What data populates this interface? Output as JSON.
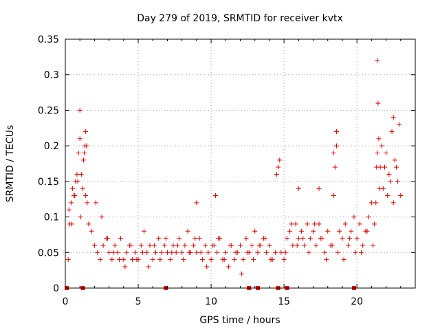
{
  "chart_data": {
    "type": "scatter",
    "title": "Day 279 of 2019, SRMTID for receiver kvtx",
    "xlabel": "GPS time / hours",
    "ylabel": "SRMTID / TECUs",
    "xlim": [
      0,
      24
    ],
    "ylim": [
      0,
      0.35
    ],
    "xticks": [
      0,
      5,
      10,
      15,
      20
    ],
    "xtick_labels": [
      "0",
      "5",
      "10",
      "15",
      "20"
    ],
    "yticks": [
      0,
      0.05,
      0.1,
      0.15,
      0.2,
      0.25,
      0.3,
      0.35
    ],
    "ytick_labels": [
      "0",
      "0.05",
      "0.1",
      "0.15",
      "0.2",
      "0.25",
      "0.3",
      "0.35"
    ],
    "grid": true,
    "marker": "+",
    "color": "#e00000",
    "zero_markers_x": [
      0.1,
      1.2,
      6.9,
      12.6,
      13.2,
      14.6,
      15.2,
      19.8
    ],
    "series": [
      {
        "name": "SRMTID",
        "x": [
          0.2,
          0.3,
          0.4,
          0.5,
          0.6,
          0.7,
          0.8,
          0.9,
          1.0,
          1.1,
          1.2,
          1.3,
          1.4,
          1.5,
          1.6,
          1.8,
          2.0,
          2.2,
          2.4,
          2.6,
          2.8,
          3.0,
          3.2,
          3.4,
          3.6,
          3.8,
          4.0,
          4.2,
          4.4,
          4.6,
          4.8,
          5.0,
          5.2,
          5.4,
          5.6,
          5.8,
          6.0,
          6.2,
          6.4,
          6.6,
          6.8,
          7.0,
          7.2,
          7.4,
          7.6,
          7.8,
          8.0,
          8.2,
          8.4,
          8.6,
          8.8,
          9.0,
          9.2,
          9.4,
          9.6,
          9.8,
          10.0,
          10.2,
          10.4,
          10.6,
          10.8,
          11.0,
          11.2,
          11.4,
          11.6,
          11.8,
          12.0,
          12.2,
          12.4,
          12.6,
          12.8,
          13.0,
          13.2,
          13.4,
          13.6,
          13.8,
          14.0,
          14.2,
          14.4,
          14.5,
          14.6,
          14.7,
          14.8,
          15.0,
          15.2,
          15.4,
          15.6,
          15.8,
          16.0,
          16.2,
          16.4,
          16.6,
          16.8,
          17.0,
          17.2,
          17.4,
          17.6,
          17.8,
          18.0,
          18.2,
          18.4,
          18.5,
          18.6,
          18.8,
          19.0,
          19.2,
          19.4,
          19.6,
          19.8,
          20.0,
          20.2,
          20.4,
          20.6,
          20.8,
          21.0,
          21.2,
          21.3,
          21.4,
          21.5,
          21.6,
          21.8,
          22.0,
          22.2,
          22.4,
          22.6,
          22.8,
          23.0,
          0.25,
          0.45,
          0.65,
          0.85,
          1.05,
          1.25,
          1.45,
          2.1,
          2.5,
          2.9,
          3.3,
          3.7,
          4.1,
          4.5,
          4.9,
          5.3,
          5.7,
          6.1,
          6.5,
          6.9,
          7.3,
          7.7,
          8.1,
          8.5,
          8.9,
          9.3,
          9.7,
          10.1,
          10.5,
          10.9,
          11.3,
          11.7,
          12.1,
          12.5,
          12.9,
          13.3,
          13.7,
          14.1,
          15.1,
          15.5,
          15.9,
          16.3,
          16.7,
          17.1,
          17.5,
          17.9,
          18.3,
          18.7,
          19.1,
          19.5,
          19.9,
          20.3,
          20.7,
          21.1,
          21.35,
          21.55,
          21.7,
          21.9,
          22.1,
          22.3,
          22.5,
          22.7,
          22.9,
          1.0,
          1.35,
          1.4,
          9.0,
          10.3,
          16.0,
          17.4,
          18.4,
          18.6,
          21.4,
          21.45,
          22.5
        ],
        "y": [
          0.04,
          0.09,
          0.12,
          0.14,
          0.13,
          0.15,
          0.16,
          0.19,
          0.21,
          0.16,
          0.14,
          0.19,
          0.22,
          0.12,
          0.09,
          0.08,
          0.06,
          0.05,
          0.04,
          0.06,
          0.07,
          0.05,
          0.04,
          0.06,
          0.05,
          0.07,
          0.04,
          0.05,
          0.06,
          0.04,
          0.05,
          0.04,
          0.06,
          0.08,
          0.05,
          0.06,
          0.04,
          0.05,
          0.07,
          0.05,
          0.06,
          0.05,
          0.04,
          0.06,
          0.05,
          0.07,
          0.05,
          0.06,
          0.08,
          0.05,
          0.06,
          0.05,
          0.07,
          0.04,
          0.06,
          0.05,
          0.04,
          0.06,
          0.05,
          0.07,
          0.04,
          0.05,
          0.03,
          0.06,
          0.04,
          0.05,
          0.06,
          0.04,
          0.07,
          0.05,
          0.06,
          0.08,
          0.05,
          0.06,
          0.07,
          0.05,
          0.06,
          0.04,
          0.05,
          0.16,
          0.17,
          0.18,
          0.05,
          0.04,
          0.07,
          0.08,
          0.06,
          0.09,
          0.07,
          0.08,
          0.06,
          0.09,
          0.07,
          0.08,
          0.06,
          0.09,
          0.07,
          0.05,
          0.08,
          0.06,
          0.13,
          0.17,
          0.2,
          0.08,
          0.07,
          0.09,
          0.06,
          0.08,
          0.1,
          0.07,
          0.09,
          0.06,
          0.08,
          0.1,
          0.12,
          0.09,
          0.12,
          0.19,
          0.21,
          0.17,
          0.14,
          0.19,
          0.16,
          0.22,
          0.18,
          0.15,
          0.13,
          0.11,
          0.09,
          0.13,
          0.15,
          0.1,
          0.18,
          0.2,
          0.12,
          0.1,
          0.07,
          0.05,
          0.04,
          0.03,
          0.06,
          0.04,
          0.05,
          0.03,
          0.06,
          0.04,
          0.07,
          0.05,
          0.06,
          0.04,
          0.05,
          0.07,
          0.05,
          0.03,
          0.06,
          0.07,
          0.04,
          0.06,
          0.05,
          0.02,
          0.05,
          0.04,
          0.06,
          0.07,
          0.04,
          0.05,
          0.09,
          0.06,
          0.07,
          0.05,
          0.09,
          0.07,
          0.04,
          0.06,
          0.05,
          0.04,
          0.07,
          0.05,
          0.05,
          0.08,
          0.06,
          0.17,
          0.14,
          0.2,
          0.17,
          0.13,
          0.15,
          0.12,
          0.17,
          0.23,
          0.25,
          0.2,
          0.13,
          0.12,
          0.13,
          0.14,
          0.14,
          0.19,
          0.22,
          0.32,
          0.26,
          0.24
        ]
      }
    ]
  }
}
